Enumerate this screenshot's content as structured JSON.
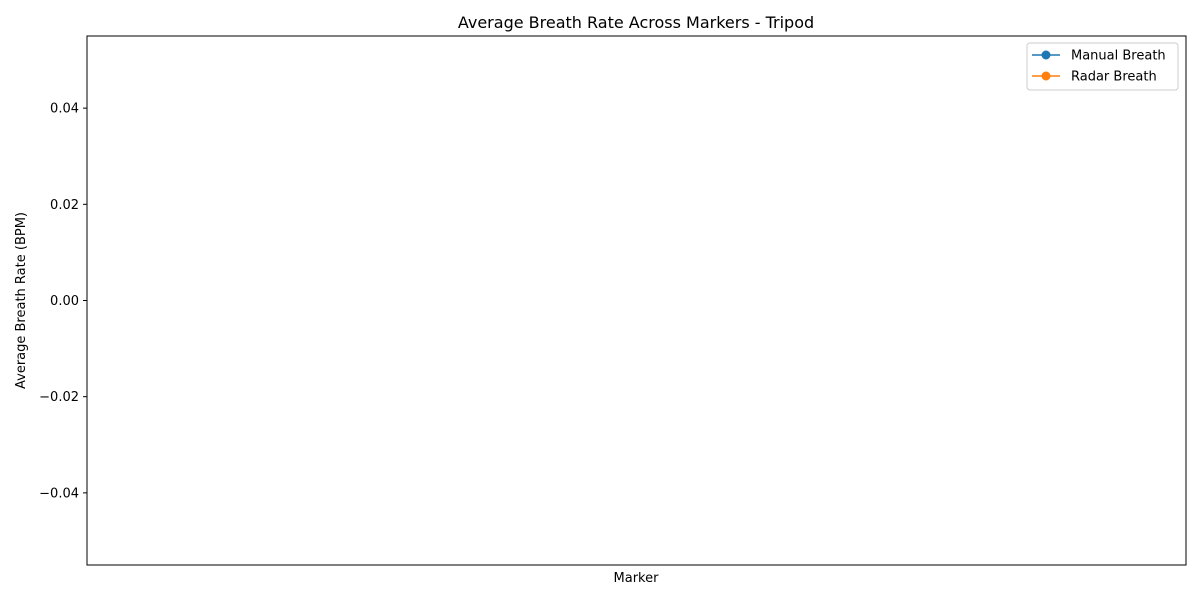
{
  "chart_data": {
    "type": "line",
    "title": "Average Breath Rate Across Markers - Tripod",
    "xlabel": "Marker",
    "ylabel": "Average Breath Rate (BPM)",
    "categories": [],
    "ylim": [
      -0.055,
      0.055
    ],
    "yticks": [
      -0.04,
      -0.02,
      0.0,
      0.02,
      0.04
    ],
    "ytick_labels": [
      "−0.04",
      "−0.02",
      "0.00",
      "0.02",
      "0.04"
    ],
    "grid": false,
    "legend_position": "top-right",
    "series": [
      {
        "name": "Manual Breath",
        "color": "#1f77b4",
        "marker": "circle",
        "values": []
      },
      {
        "name": "Radar Breath",
        "color": "#ff7f0e",
        "marker": "circle",
        "values": []
      }
    ]
  }
}
